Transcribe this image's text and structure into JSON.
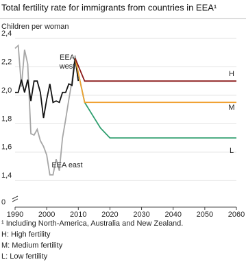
{
  "chart_data": {
    "type": "line",
    "title": "Total fertility rate for immigrants from countries in EEA¹",
    "ylabel": "Children per woman",
    "xlim": [
      1990,
      2060
    ],
    "xticks": [
      1990,
      2000,
      2010,
      2020,
      2030,
      2040,
      2050,
      2060
    ],
    "ylim": [
      0,
      2.4
    ],
    "axis_break": [
      0,
      1.3
    ],
    "yticks": [
      0,
      {
        "value": 1.4,
        "label": "1,4"
      },
      {
        "value": 1.6,
        "label": "1,6"
      },
      {
        "value": 1.8,
        "label": "1,8"
      },
      {
        "value": 2.0,
        "label": "2,0"
      },
      {
        "value": 2.2,
        "label": "2,2"
      },
      {
        "value": 2.4,
        "label": "2,4"
      }
    ],
    "grid": true,
    "series": [
      {
        "name": "EEA west",
        "color": "#111111",
        "x": [
          1990,
          1991,
          1992,
          1993,
          1994,
          1995,
          1996,
          1997,
          1998,
          1999,
          2000,
          2001,
          2002,
          2003,
          2004,
          2005,
          2006,
          2007,
          2008,
          2009,
          2010
        ],
        "values": [
          2.02,
          2.02,
          2.11,
          2.02,
          2.11,
          1.96,
          2.1,
          2.1,
          2.02,
          1.84,
          1.97,
          2.08,
          1.95,
          1.96,
          1.95,
          2.02,
          2.02,
          2.08,
          2.07,
          2.26,
          2.1
        ]
      },
      {
        "name": "EEA east",
        "color": "#a6a6a6",
        "x": [
          1990,
          1991,
          1992,
          1993,
          1994,
          1995,
          1996,
          1997,
          1998,
          1999,
          2000,
          2001,
          2002,
          2003,
          2004,
          2005,
          2006,
          2007,
          2008,
          2009,
          2010
        ],
        "values": [
          2.33,
          2.35,
          2.06,
          2.32,
          2.22,
          1.73,
          1.72,
          1.76,
          1.68,
          1.64,
          1.58,
          1.44,
          1.44,
          1.55,
          1.47,
          1.7,
          1.83,
          1.97,
          2.1,
          2.28,
          2.12
        ]
      },
      {
        "name": "H",
        "color": "#8b1a1a",
        "x": [
          2009,
          2012,
          2060
        ],
        "values": [
          2.26,
          2.1,
          2.1
        ]
      },
      {
        "name": "M",
        "color": "#f0a030",
        "x": [
          2009,
          2012,
          2060
        ],
        "values": [
          2.26,
          1.95,
          1.95
        ]
      },
      {
        "name": "L",
        "color": "#2e9e6e",
        "x": [
          2009,
          2012,
          2017,
          2020,
          2060
        ],
        "values": [
          2.26,
          1.95,
          1.77,
          1.7,
          1.7
        ]
      }
    ],
    "footnotes": [
      "¹ Including North-America, Australia and New Zealand.",
      "H: High fertility",
      "M: Medium fertility",
      "L: Low fertility"
    ]
  }
}
